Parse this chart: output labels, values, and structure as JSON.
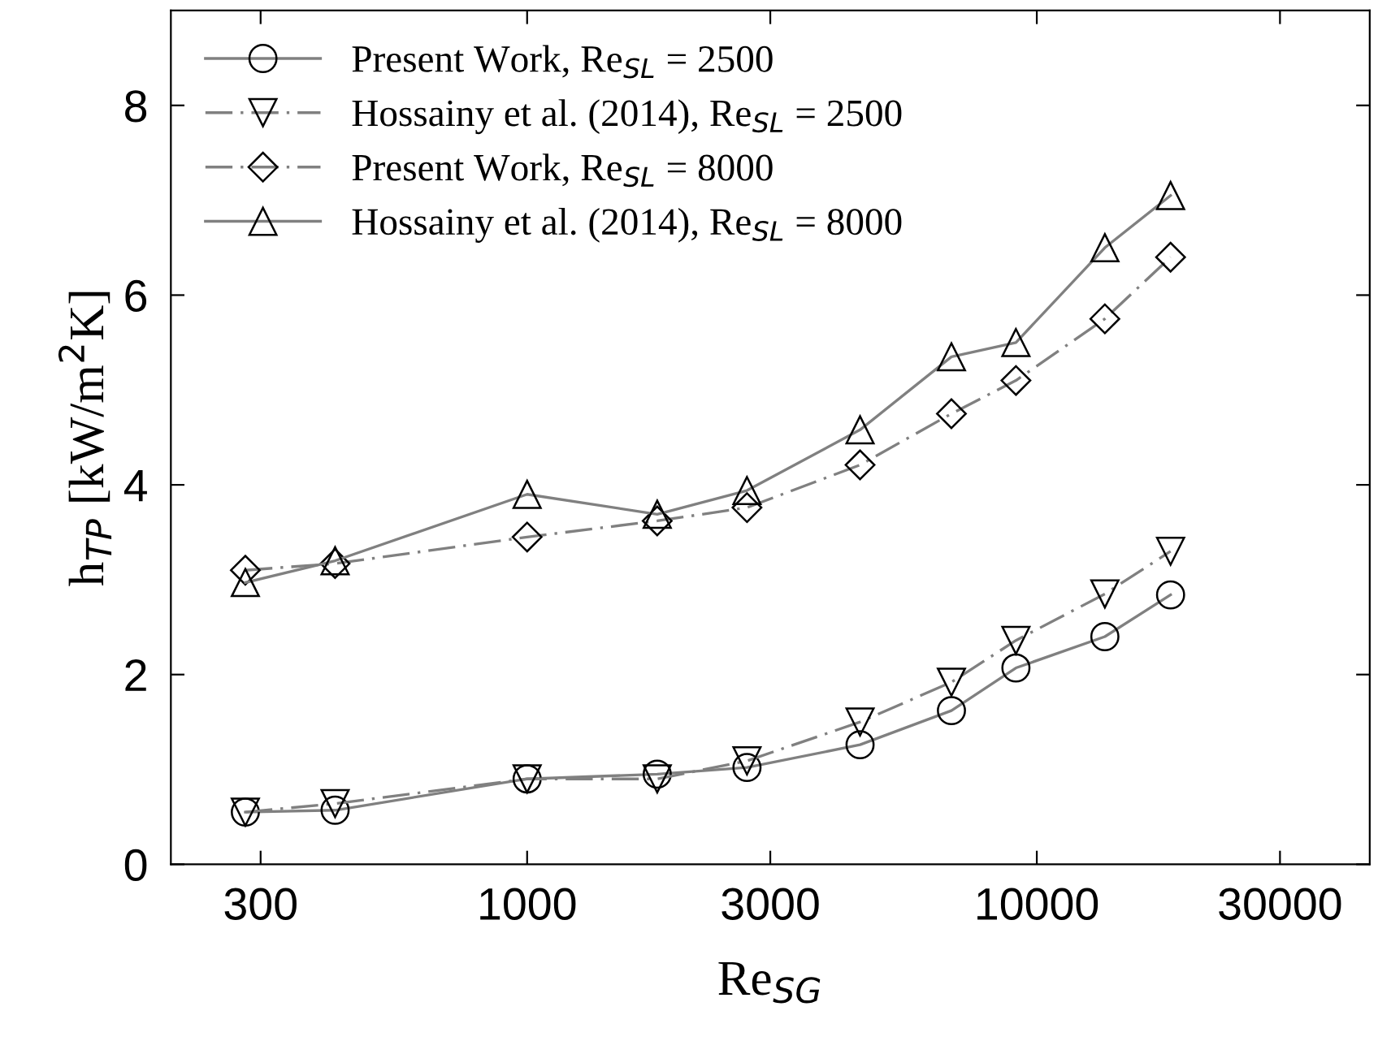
{
  "chart_data": {
    "type": "line",
    "xlabel": "Re$_{SG}$",
    "ylabel": "h$_{TP}$ [kW/m$^{2}$K]",
    "log": "x",
    "xlim": [
      200,
      45000
    ],
    "ylim": [
      0,
      9
    ],
    "xticks": [
      300,
      1000,
      3000,
      10000,
      30000
    ],
    "yticks": [
      0,
      2,
      4,
      6,
      8
    ],
    "x": [
      280,
      420,
      1000,
      1800,
      2700,
      4500,
      6800,
      9100,
      13600,
      18300
    ],
    "series": [
      {
        "name": "Present Work, Re$_{SL}$ = 2500",
        "color": "#000000",
        "marker": "circle",
        "line_style": "solid",
        "values": [
          0.55,
          0.57,
          0.9,
          0.95,
          1.02,
          1.26,
          1.62,
          2.07,
          2.4,
          2.84
        ]
      },
      {
        "name": "Hossainy et al. (2014), Re$_{SL}$ = 2500",
        "color": "#000000",
        "marker": "triangle_down",
        "line_style": "dashdot",
        "values": [
          0.55,
          0.64,
          0.9,
          0.9,
          1.09,
          1.5,
          1.92,
          2.36,
          2.85,
          3.3
        ]
      },
      {
        "name": "Present Work, Re$_{SL}$ = 8000",
        "color": "#000000",
        "marker": "diamond",
        "line_style": "dashdot",
        "values": [
          3.1,
          3.17,
          3.45,
          3.62,
          3.76,
          4.21,
          4.75,
          5.1,
          5.75,
          6.4
        ]
      },
      {
        "name": "Hossainy et al. (2014), Re$_{SL}$ = 8000",
        "color": "#000000",
        "marker": "triangle",
        "line_style": "solid",
        "values": [
          2.97,
          3.2,
          3.9,
          3.69,
          3.94,
          4.58,
          5.35,
          5.5,
          6.5,
          7.05
        ]
      }
    ],
    "legend": "top left",
    "grid": false
  }
}
